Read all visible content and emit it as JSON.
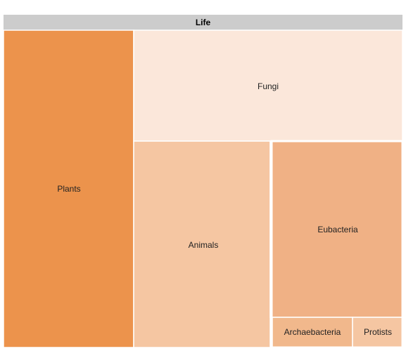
{
  "chart_data": {
    "type": "treemap",
    "title": "Life",
    "header_color": "#cccccc",
    "nodes": [
      {
        "name": "Plants",
        "color": "#ec934c"
      },
      {
        "name": "Fungi",
        "color": "#fbe7da"
      },
      {
        "name": "Animals",
        "color": "#f5c6a2"
      },
      {
        "name": "Eubacteria",
        "color": "#f0b185"
      },
      {
        "name": "Archaebacteria",
        "color": "#f1b88c"
      },
      {
        "name": "Protists",
        "color": "#f5c6a2"
      }
    ]
  }
}
